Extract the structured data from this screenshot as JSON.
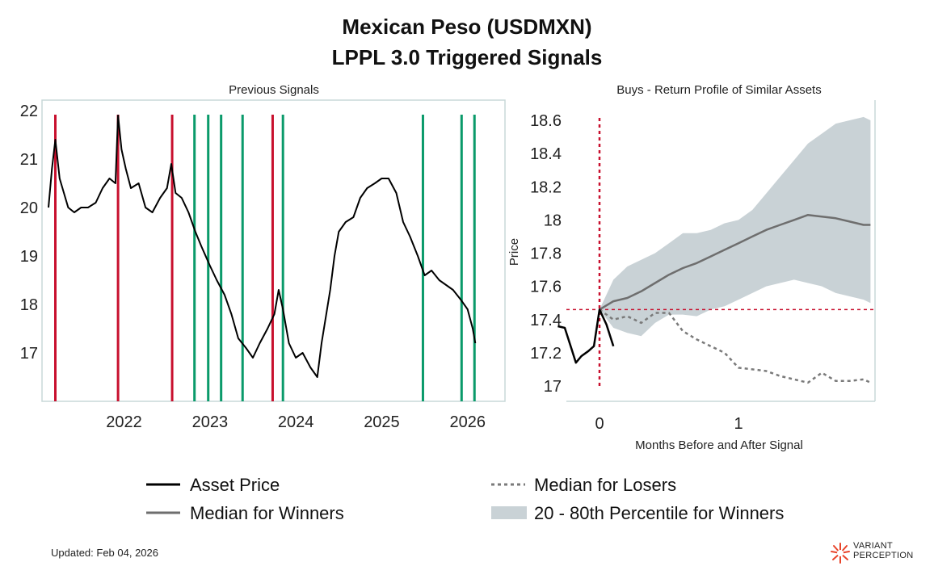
{
  "title_line1": "Mexican Peso (USDMXN)",
  "title_line2": "LPPL 3.0 Triggered Signals",
  "footer": "Updated: Feb 04, 2026",
  "brand": {
    "line1": "VARIANT",
    "line2": "PERCEPTION"
  },
  "colors": {
    "sell": "#c8102e",
    "buy": "#0a9a6a",
    "price": "#000000",
    "winners": "#6e6e6e",
    "losers": "#7a7a7a",
    "band": "#c9d2d6",
    "axes": "#c8d8d8",
    "ref": "#c8102e"
  },
  "legend": [
    {
      "label": "Asset Price",
      "style": "price"
    },
    {
      "label": "Median for Losers",
      "style": "losers"
    },
    {
      "label": "Median for Winners",
      "style": "winners"
    },
    {
      "label": "20 - 80th Percentile for Winners",
      "style": "band"
    }
  ],
  "chart_data": [
    {
      "type": "line",
      "title": "Previous Signals",
      "xlabel": "",
      "ylabel": "",
      "xlim": [
        2021.12,
        2026.2
      ],
      "ylim": [
        16.0,
        22.0
      ],
      "xticks": [
        2022,
        2023,
        2024,
        2025,
        2026
      ],
      "xtick_labels": [
        "2022",
        "2023",
        "2024",
        "2025",
        "2026"
      ],
      "yticks": [
        17,
        18,
        19,
        20,
        21,
        22
      ],
      "ytick_labels": [
        "17",
        "18",
        "19",
        "20",
        "21",
        "22"
      ],
      "series": [
        {
          "x": [
            2021.12,
            2021.16,
            2021.2,
            2021.25,
            2021.3,
            2021.35,
            2021.42,
            2021.5,
            2021.58,
            2021.67,
            2021.75,
            2021.83,
            2021.9,
            2021.93,
            2021.97,
            2022.02,
            2022.08,
            2022.17,
            2022.25,
            2022.33,
            2022.42,
            2022.5,
            2022.55,
            2022.6,
            2022.67,
            2022.75,
            2022.83,
            2022.9,
            2023.0,
            2023.08,
            2023.17,
            2023.25,
            2023.33,
            2023.42,
            2023.5,
            2023.58,
            2023.67,
            2023.75,
            2023.8,
            2023.85,
            2023.92,
            2024.0,
            2024.08,
            2024.17,
            2024.25,
            2024.3,
            2024.4,
            2024.45,
            2024.5,
            2024.58,
            2024.67,
            2024.75,
            2024.83,
            2024.92,
            2025.0,
            2025.08,
            2025.17,
            2025.25,
            2025.33,
            2025.42,
            2025.5,
            2025.58,
            2025.67,
            2025.75,
            2025.83,
            2025.92,
            2026.0,
            2026.06,
            2026.09
          ],
          "y": [
            20.0,
            20.8,
            21.4,
            20.6,
            20.3,
            20.0,
            19.9,
            20.0,
            20.0,
            20.1,
            20.4,
            20.6,
            20.5,
            21.9,
            21.2,
            20.8,
            20.4,
            20.5,
            20.0,
            19.9,
            20.2,
            20.4,
            20.9,
            20.3,
            20.2,
            19.9,
            19.5,
            19.2,
            18.8,
            18.5,
            18.2,
            17.8,
            17.3,
            17.1,
            16.9,
            17.2,
            17.5,
            17.8,
            18.3,
            17.9,
            17.2,
            16.9,
            17.0,
            16.7,
            16.5,
            17.2,
            18.3,
            19.0,
            19.5,
            19.7,
            19.8,
            20.2,
            20.4,
            20.5,
            20.6,
            20.6,
            20.3,
            19.7,
            19.4,
            19.0,
            18.6,
            18.7,
            18.5,
            18.4,
            18.3,
            18.1,
            17.9,
            17.5,
            17.2
          ]
        }
      ],
      "sell_signals": [
        2021.2,
        2021.93,
        2022.56,
        2023.73
      ],
      "buy_signals": [
        2022.82,
        2022.98,
        2023.13,
        2023.38,
        2023.85,
        2025.48,
        2025.93,
        2026.08
      ]
    },
    {
      "type": "line",
      "title": "Buys - Return Profile of Similar Assets",
      "xlabel": "Months Before and After Signal",
      "ylabel": "Price",
      "xlim": [
        -0.3,
        1.95
      ],
      "ylim": [
        16.92,
        18.68
      ],
      "xticks": [
        0,
        1
      ],
      "xtick_labels": [
        "0",
        "1"
      ],
      "yticks": [
        17,
        17.2,
        17.4,
        17.6,
        17.8,
        18,
        18.2,
        18.4,
        18.6
      ],
      "ytick_labels": [
        "17",
        "17.2",
        "17.4",
        "17.6",
        "17.8",
        "18",
        "18.2",
        "18.4",
        "18.6"
      ],
      "signal_x": 0,
      "signal_price": 17.46,
      "asset_price": {
        "x": [
          -0.3,
          -0.25,
          -0.2,
          -0.17,
          -0.13,
          -0.08,
          -0.04,
          0,
          0.05,
          0.1
        ],
        "y": [
          17.36,
          17.35,
          17.22,
          17.14,
          17.18,
          17.21,
          17.24,
          17.46,
          17.37,
          17.24
        ]
      },
      "median_winners": {
        "x": [
          0,
          0.1,
          0.2,
          0.3,
          0.4,
          0.5,
          0.6,
          0.7,
          0.8,
          0.9,
          1.0,
          1.1,
          1.2,
          1.3,
          1.4,
          1.5,
          1.6,
          1.7,
          1.8,
          1.9,
          1.95
        ],
        "y": [
          17.46,
          17.51,
          17.53,
          17.57,
          17.62,
          17.67,
          17.71,
          17.74,
          17.78,
          17.82,
          17.86,
          17.9,
          17.94,
          17.97,
          18.0,
          18.03,
          18.02,
          18.01,
          17.99,
          17.97,
          17.97
        ]
      },
      "median_losers": {
        "x": [
          0,
          0.1,
          0.2,
          0.3,
          0.4,
          0.5,
          0.6,
          0.7,
          0.8,
          0.9,
          1.0,
          1.1,
          1.2,
          1.3,
          1.4,
          1.5,
          1.6,
          1.7,
          1.8,
          1.9,
          1.95
        ],
        "y": [
          17.46,
          17.4,
          17.42,
          17.38,
          17.44,
          17.44,
          17.33,
          17.28,
          17.24,
          17.2,
          17.11,
          17.1,
          17.09,
          17.06,
          17.04,
          17.02,
          17.08,
          17.03,
          17.03,
          17.04,
          17.02
        ]
      },
      "band_upper": {
        "x": [
          0,
          0.1,
          0.2,
          0.3,
          0.4,
          0.5,
          0.6,
          0.7,
          0.8,
          0.9,
          1.0,
          1.1,
          1.2,
          1.3,
          1.4,
          1.5,
          1.6,
          1.7,
          1.8,
          1.9,
          1.95
        ],
        "y": [
          17.46,
          17.64,
          17.72,
          17.76,
          17.8,
          17.86,
          17.92,
          17.92,
          17.94,
          17.98,
          18.0,
          18.06,
          18.16,
          18.26,
          18.36,
          18.46,
          18.52,
          18.58,
          18.6,
          18.62,
          18.6
        ]
      },
      "band_lower": {
        "x": [
          0,
          0.1,
          0.2,
          0.3,
          0.4,
          0.5,
          0.6,
          0.7,
          0.8,
          0.9,
          1.0,
          1.1,
          1.2,
          1.3,
          1.4,
          1.5,
          1.6,
          1.7,
          1.8,
          1.9,
          1.95
        ],
        "y": [
          17.46,
          17.35,
          17.32,
          17.3,
          17.38,
          17.43,
          17.43,
          17.42,
          17.46,
          17.48,
          17.52,
          17.56,
          17.6,
          17.62,
          17.64,
          17.62,
          17.6,
          17.56,
          17.54,
          17.52,
          17.5
        ]
      }
    }
  ]
}
